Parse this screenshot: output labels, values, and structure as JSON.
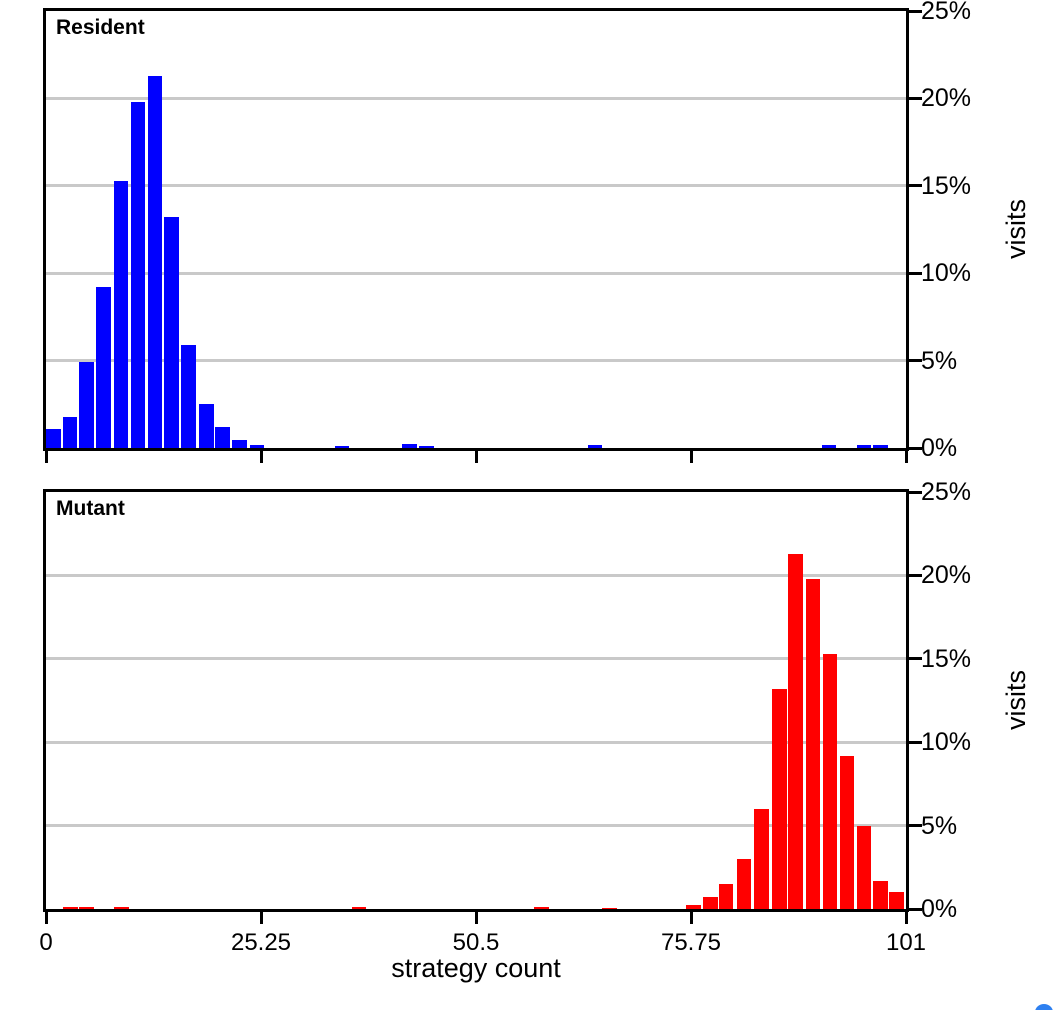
{
  "chart_data": {
    "type": "bar",
    "subtype": "histogram-two-panel",
    "xlabel": "strategy count",
    "ylabel": "visits",
    "xlim": [
      0,
      101
    ],
    "ylim": [
      0,
      25
    ],
    "x_ticks": {
      "values": [
        0,
        25.25,
        50.5,
        75.75,
        101
      ],
      "labels": [
        "0",
        "25.25",
        "50.5",
        "75.75",
        "101"
      ]
    },
    "y_ticks": {
      "values": [
        0,
        5,
        10,
        15,
        20,
        25
      ],
      "labels": [
        "0%",
        "5%",
        "10%",
        "15%",
        "20%",
        "25%"
      ]
    },
    "gridlines": [
      5,
      10,
      15,
      20
    ],
    "grid_color": "#c9c9c9",
    "axis_color": "#000000",
    "legend_position": "none",
    "bar_width_units": 1.73,
    "panels": [
      {
        "title": "Resident",
        "color": "#0000ff",
        "bars": [
          {
            "x": 0.05,
            "h": 1.1
          },
          {
            "x": 1.95,
            "h": 1.8
          },
          {
            "x": 3.9,
            "h": 4.9
          },
          {
            "x": 5.9,
            "h": 9.2
          },
          {
            "x": 7.95,
            "h": 15.3
          },
          {
            "x": 9.95,
            "h": 19.8
          },
          {
            "x": 11.95,
            "h": 21.3
          },
          {
            "x": 13.9,
            "h": 13.2
          },
          {
            "x": 15.9,
            "h": 5.9
          },
          {
            "x": 17.95,
            "h": 2.5
          },
          {
            "x": 19.9,
            "h": 1.2
          },
          {
            "x": 21.9,
            "h": 0.45
          },
          {
            "x": 23.9,
            "h": 0.2
          },
          {
            "x": 33.9,
            "h": 0.12
          },
          {
            "x": 41.8,
            "h": 0.25
          },
          {
            "x": 43.8,
            "h": 0.1
          },
          {
            "x": 63.6,
            "h": 0.18
          },
          {
            "x": 91.1,
            "h": 0.15
          },
          {
            "x": 95.2,
            "h": 0.18
          },
          {
            "x": 97.1,
            "h": 0.18
          }
        ]
      },
      {
        "title": "Mutant",
        "color": "#ff0000",
        "bars": [
          {
            "x": 2.0,
            "h": 0.15
          },
          {
            "x": 3.9,
            "h": 0.15
          },
          {
            "x": 8.0,
            "h": 0.1
          },
          {
            "x": 35.9,
            "h": 0.15
          },
          {
            "x": 57.3,
            "h": 0.15
          },
          {
            "x": 65.3,
            "h": 0.08
          },
          {
            "x": 75.2,
            "h": 0.25
          },
          {
            "x": 77.2,
            "h": 0.7
          },
          {
            "x": 79.0,
            "h": 1.5
          },
          {
            "x": 81.1,
            "h": 3.0
          },
          {
            "x": 83.2,
            "h": 6.0
          },
          {
            "x": 85.3,
            "h": 13.2
          },
          {
            "x": 87.2,
            "h": 21.3
          },
          {
            "x": 89.2,
            "h": 19.8
          },
          {
            "x": 91.2,
            "h": 15.3
          },
          {
            "x": 93.2,
            "h": 9.2
          },
          {
            "x": 95.2,
            "h": 5.0
          },
          {
            "x": 97.1,
            "h": 1.7
          },
          {
            "x": 99.0,
            "h": 1.0
          }
        ]
      }
    ]
  },
  "ui": {
    "floating_widget_color": "#2e80f0"
  }
}
